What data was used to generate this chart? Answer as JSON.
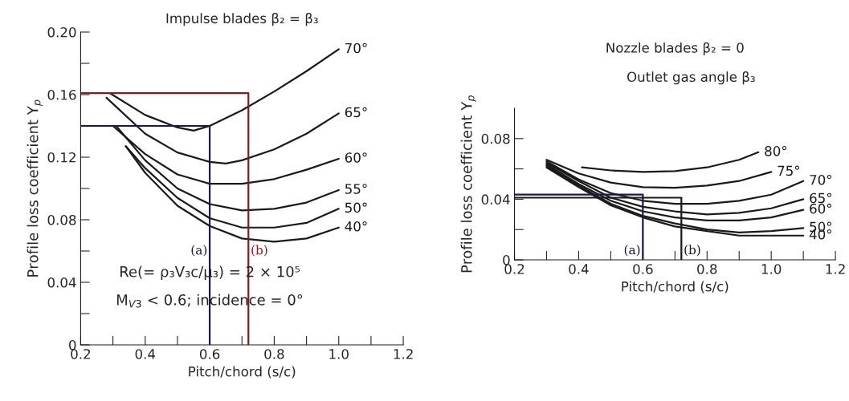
{
  "chart_data": [
    {
      "type": "line",
      "title": "Impulse blades β₂ = β₃",
      "xlabel": "Pitch/chord (s/c)",
      "ylabel": "Profile loss coefficient Y$_{p}$",
      "xlim": [
        0.2,
        1.2
      ],
      "ylim": [
        0,
        0.2
      ],
      "xticks": [
        0.2,
        {
          "value": 0.3,
          "label": null
        },
        0.4,
        {
          "value": 0.5,
          "label": null
        },
        0.6,
        {
          "value": 0.7,
          "label": null
        },
        0.8,
        {
          "value": 0.9,
          "label": null
        },
        {
          "value": 1.0,
          "label": "1.0"
        },
        {
          "value": 1.1,
          "label": null
        },
        1.2
      ],
      "yticks": [
        0,
        {
          "value": 0.02,
          "label": null
        },
        0.04,
        {
          "value": 0.06,
          "label": null
        },
        0.08,
        {
          "value": 0.1,
          "label": null
        },
        0.12,
        {
          "value": 0.14,
          "label": null
        },
        0.16,
        {
          "value": 0.18,
          "label": null
        },
        {
          "value": 0.2,
          "label": "0.20"
        }
      ],
      "grid": false,
      "marker": "none",
      "line_style": "solid",
      "series": [
        {
          "name": "70°",
          "color": "#1a1a1a",
          "x": [
            0.29,
            0.4,
            0.5,
            0.55,
            0.6,
            0.7,
            0.8,
            0.9,
            1.0
          ],
          "values": [
            0.161,
            0.147,
            0.139,
            0.137,
            0.14,
            0.15,
            0.162,
            0.175,
            0.189
          ]
        },
        {
          "name": "65°",
          "color": "#1a1a1a",
          "x": [
            0.28,
            0.4,
            0.5,
            0.6,
            0.65,
            0.7,
            0.8,
            0.9,
            1.0
          ],
          "values": [
            0.158,
            0.135,
            0.123,
            0.117,
            0.116,
            0.118,
            0.125,
            0.135,
            0.148
          ]
        },
        {
          "name": "60°",
          "color": "#1a1a1a",
          "x": [
            0.3,
            0.4,
            0.5,
            0.6,
            0.7,
            0.8,
            0.9,
            1.0
          ],
          "values": [
            0.14,
            0.122,
            0.109,
            0.103,
            0.103,
            0.106,
            0.112,
            0.119
          ]
        },
        {
          "name": "55°",
          "color": "#1a1a1a",
          "x": [
            0.31,
            0.4,
            0.5,
            0.6,
            0.7,
            0.8,
            0.9,
            1.0
          ],
          "values": [
            0.14,
            0.118,
            0.1,
            0.09,
            0.086,
            0.087,
            0.091,
            0.099
          ]
        },
        {
          "name": "50°",
          "color": "#1a1a1a",
          "x": [
            0.34,
            0.4,
            0.5,
            0.6,
            0.7,
            0.8,
            0.9,
            1.0
          ],
          "values": [
            0.127,
            0.113,
            0.094,
            0.081,
            0.075,
            0.075,
            0.078,
            0.087
          ]
        },
        {
          "name": "40°",
          "color": "#1a1a1a",
          "x": [
            0.34,
            0.4,
            0.5,
            0.6,
            0.7,
            0.8,
            0.9,
            1.0
          ],
          "values": [
            0.127,
            0.11,
            0.089,
            0.076,
            0.068,
            0.066,
            0.068,
            0.075
          ]
        },
        {
          "name": "(a)",
          "color": "#1a1a4a",
          "x": [
            0.2,
            0.6,
            0.6
          ],
          "values": [
            0.14,
            0.14,
            0
          ]
        },
        {
          "name": "(b)",
          "color": "#8b1a1a",
          "x": [
            0.2,
            0.72,
            0.72
          ],
          "values": [
            0.161,
            0.161,
            0
          ]
        }
      ],
      "annotations": [
        "Re(= ρ₃V₃c/μ₃) = 2 × 10⁵",
        "M$_{V3}$ < 0.6; incidence = 0°"
      ]
    },
    {
      "type": "line",
      "title": "Nozzle blades β₂ = 0",
      "xlabel": "Pitch/chord (s/c)",
      "ylabel": "Profile loss coefficient Y$_{p}$",
      "xlim": [
        0.2,
        1.2
      ],
      "ylim": [
        0,
        0.1
      ],
      "xticks": [
        0.2,
        {
          "value": 0.3,
          "label": null
        },
        0.4,
        {
          "value": 0.5,
          "label": null
        },
        0.6,
        {
          "value": 0.7,
          "label": null
        },
        0.8,
        {
          "value": 0.9,
          "label": null
        },
        {
          "value": 1.0,
          "label": "1.0"
        },
        {
          "value": 1.1,
          "label": null
        },
        1.2
      ],
      "yticks": [
        0,
        {
          "value": 0.02,
          "label": null
        },
        0.04,
        {
          "value": 0.06,
          "label": null
        },
        0.08
      ],
      "grid": false,
      "marker": "none",
      "line_style": "solid",
      "series": [
        {
          "name": "80°",
          "color": "#1a1a1a",
          "x": [
            0.41,
            0.5,
            0.6,
            0.7,
            0.8,
            0.9,
            0.96
          ],
          "values": [
            0.061,
            0.059,
            0.058,
            0.0585,
            0.061,
            0.066,
            0.071
          ]
        },
        {
          "name": "75°",
          "color": "#1a1a1a",
          "x": [
            0.3,
            0.4,
            0.5,
            0.6,
            0.7,
            0.8,
            0.9,
            1.0
          ],
          "values": [
            0.066,
            0.057,
            0.051,
            0.048,
            0.0475,
            0.049,
            0.052,
            0.058
          ]
        },
        {
          "name": "70°",
          "color": "#1a1a1a",
          "x": [
            0.3,
            0.4,
            0.5,
            0.6,
            0.7,
            0.8,
            0.9,
            1.0,
            1.1
          ],
          "values": [
            0.065,
            0.053,
            0.044,
            0.039,
            0.037,
            0.037,
            0.039,
            0.043,
            0.052
          ]
        },
        {
          "name": "65°",
          "color": "#1a1a1a",
          "x": [
            0.3,
            0.4,
            0.5,
            0.6,
            0.7,
            0.8,
            0.9,
            1.0,
            1.1
          ],
          "values": [
            0.064,
            0.052,
            0.041,
            0.035,
            0.032,
            0.03,
            0.031,
            0.034,
            0.04
          ]
        },
        {
          "name": "60°",
          "color": "#1a1a1a",
          "x": [
            0.3,
            0.4,
            0.5,
            0.6,
            0.7,
            0.8,
            0.9,
            1.0,
            1.1
          ],
          "values": [
            0.063,
            0.05,
            0.039,
            0.032,
            0.028,
            0.026,
            0.026,
            0.028,
            0.033
          ]
        },
        {
          "name": "50°",
          "color": "#1a1a1a",
          "x": [
            0.3,
            0.4,
            0.5,
            0.6,
            0.7,
            0.8,
            0.9,
            1.0,
            1.1
          ],
          "values": [
            0.062,
            0.049,
            0.037,
            0.029,
            0.024,
            0.02,
            0.018,
            0.019,
            0.021
          ]
        },
        {
          "name": "40°",
          "color": "#1a1a1a",
          "x": [
            0.3,
            0.4,
            0.5,
            0.6,
            0.7,
            0.8,
            0.9,
            1.0,
            1.1
          ],
          "values": [
            0.061,
            0.048,
            0.036,
            0.028,
            0.022,
            0.019,
            0.016,
            0.016,
            0.016
          ]
        },
        {
          "name": "(a)",
          "color": "#1a1a4a",
          "x": [
            0.2,
            0.6,
            0.6
          ],
          "values": [
            0.043,
            0.043,
            0
          ]
        },
        {
          "name": "(b)",
          "color": "#1a1a1a",
          "x": [
            0.2,
            0.72,
            0.72
          ],
          "values": [
            0.041,
            0.041,
            0
          ]
        }
      ],
      "annotations": [
        "Outlet gas angle β₃"
      ]
    }
  ]
}
